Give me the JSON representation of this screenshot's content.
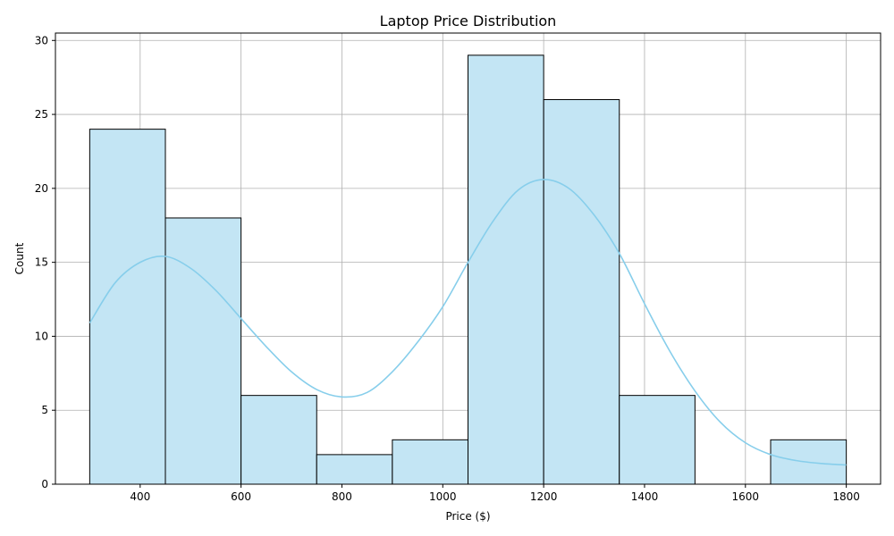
{
  "chart_data": {
    "type": "bar",
    "title": "Laptop Price Distribution",
    "xlabel": "Price ($)",
    "ylabel": "Count",
    "xlim": [
      232,
      1868
    ],
    "ylim": [
      0,
      30.5
    ],
    "xticks": [
      400,
      600,
      800,
      1000,
      1200,
      1400,
      1600,
      1800
    ],
    "yticks": [
      0,
      5,
      10,
      15,
      20,
      25,
      30
    ],
    "grid": true,
    "bins": [
      {
        "x0": 300,
        "x1": 450,
        "count": 24
      },
      {
        "x0": 450,
        "x1": 600,
        "count": 18
      },
      {
        "x0": 600,
        "x1": 750,
        "count": 6
      },
      {
        "x0": 750,
        "x1": 900,
        "count": 2
      },
      {
        "x0": 900,
        "x1": 1050,
        "count": 3
      },
      {
        "x0": 1050,
        "x1": 1200,
        "count": 29
      },
      {
        "x0": 1200,
        "x1": 1350,
        "count": 26
      },
      {
        "x0": 1350,
        "x1": 1500,
        "count": 6
      },
      {
        "x0": 1500,
        "x1": 1650,
        "count": 0
      },
      {
        "x0": 1650,
        "x1": 1800,
        "count": 3
      }
    ],
    "kde": {
      "x": [
        300,
        350,
        400,
        450,
        500,
        550,
        600,
        650,
        700,
        750,
        800,
        850,
        900,
        950,
        1000,
        1050,
        1100,
        1150,
        1200,
        1250,
        1300,
        1350,
        1400,
        1450,
        1500,
        1550,
        1600,
        1650,
        1700,
        1750,
        1800
      ],
      "y": [
        10.9,
        13.6,
        15.0,
        15.4,
        14.6,
        13.1,
        11.2,
        9.3,
        7.6,
        6.4,
        5.9,
        6.2,
        7.6,
        9.6,
        12.0,
        15.0,
        17.8,
        19.9,
        20.6,
        20.0,
        18.2,
        15.6,
        12.2,
        9.0,
        6.3,
        4.2,
        2.8,
        2.0,
        1.6,
        1.4,
        1.3
      ]
    },
    "colors": {
      "bar_fill": "#c3e5f4",
      "bar_edge": "#000000",
      "kde_line": "#87ceeb",
      "grid": "#b0b0b0"
    }
  }
}
